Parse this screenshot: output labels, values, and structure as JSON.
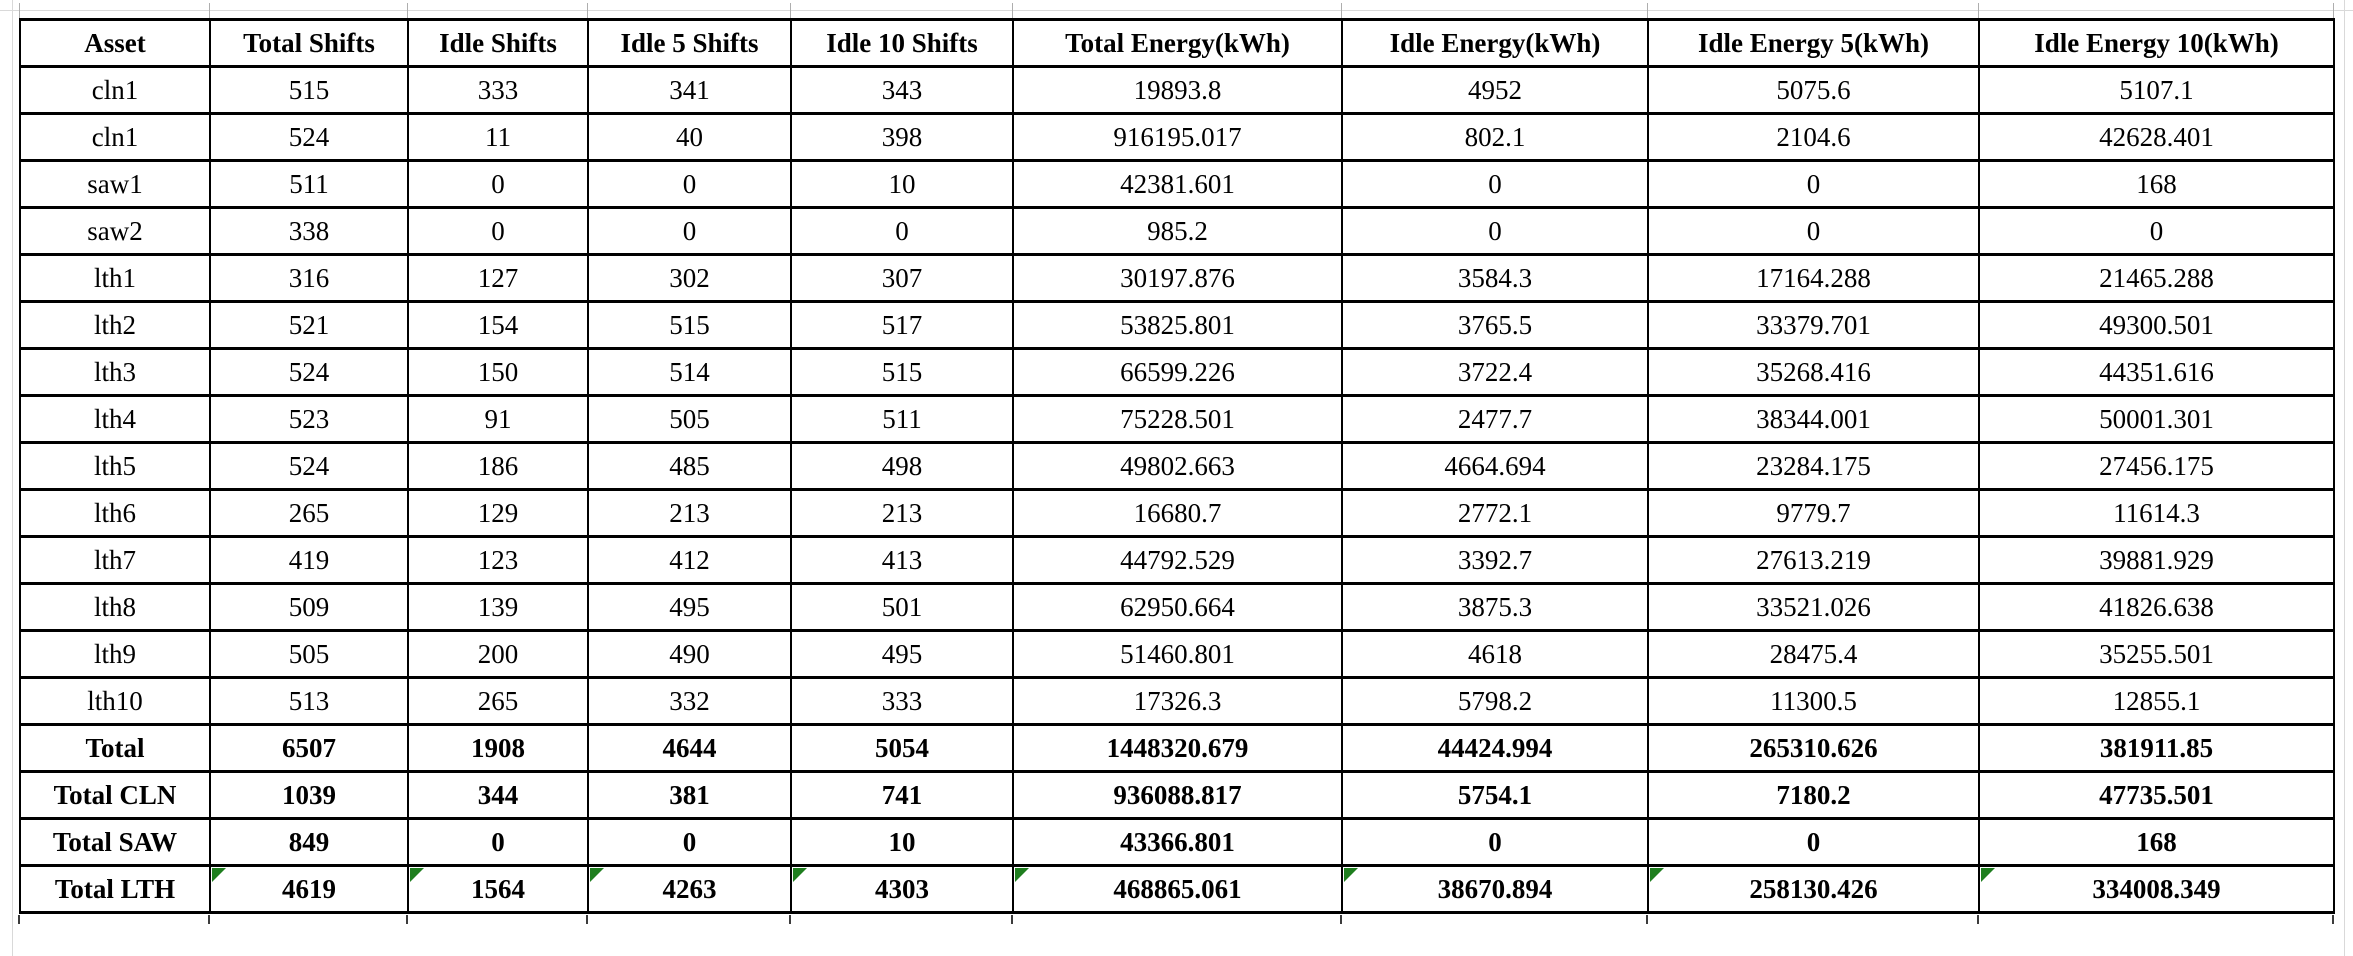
{
  "table": {
    "name": "asset-shift-energy-table",
    "columns": [
      "Asset",
      "Total Shifts",
      "Idle Shifts",
      "Idle 5 Shifts",
      "Idle 10 Shifts",
      "Total Energy(kWh)",
      "Idle Energy(kWh)",
      "Idle Energy 5(kWh)",
      "Idle Energy 10(kWh)"
    ],
    "rows": [
      {
        "asset": "cln1",
        "values": [
          "515",
          "333",
          "341",
          "343",
          "19893.8",
          "4952",
          "5075.6",
          "5107.1"
        ],
        "bold": false,
        "flagged": false
      },
      {
        "asset": "cln1",
        "values": [
          "524",
          "11",
          "40",
          "398",
          "916195.017",
          "802.1",
          "2104.6",
          "42628.401"
        ],
        "bold": false,
        "flagged": false
      },
      {
        "asset": "saw1",
        "values": [
          "511",
          "0",
          "0",
          "10",
          "42381.601",
          "0",
          "0",
          "168"
        ],
        "bold": false,
        "flagged": false
      },
      {
        "asset": "saw2",
        "values": [
          "338",
          "0",
          "0",
          "0",
          "985.2",
          "0",
          "0",
          "0"
        ],
        "bold": false,
        "flagged": false
      },
      {
        "asset": "lth1",
        "values": [
          "316",
          "127",
          "302",
          "307",
          "30197.876",
          "3584.3",
          "17164.288",
          "21465.288"
        ],
        "bold": false,
        "flagged": false
      },
      {
        "asset": "lth2",
        "values": [
          "521",
          "154",
          "515",
          "517",
          "53825.801",
          "3765.5",
          "33379.701",
          "49300.501"
        ],
        "bold": false,
        "flagged": false
      },
      {
        "asset": "lth3",
        "values": [
          "524",
          "150",
          "514",
          "515",
          "66599.226",
          "3722.4",
          "35268.416",
          "44351.616"
        ],
        "bold": false,
        "flagged": false
      },
      {
        "asset": "lth4",
        "values": [
          "523",
          "91",
          "505",
          "511",
          "75228.501",
          "2477.7",
          "38344.001",
          "50001.301"
        ],
        "bold": false,
        "flagged": false
      },
      {
        "asset": "lth5",
        "values": [
          "524",
          "186",
          "485",
          "498",
          "49802.663",
          "4664.694",
          "23284.175",
          "27456.175"
        ],
        "bold": false,
        "flagged": false
      },
      {
        "asset": "lth6",
        "values": [
          "265",
          "129",
          "213",
          "213",
          "16680.7",
          "2772.1",
          "9779.7",
          "11614.3"
        ],
        "bold": false,
        "flagged": false
      },
      {
        "asset": "lth7",
        "values": [
          "419",
          "123",
          "412",
          "413",
          "44792.529",
          "3392.7",
          "27613.219",
          "39881.929"
        ],
        "bold": false,
        "flagged": false
      },
      {
        "asset": "lth8",
        "values": [
          "509",
          "139",
          "495",
          "501",
          "62950.664",
          "3875.3",
          "33521.026",
          "41826.638"
        ],
        "bold": false,
        "flagged": false
      },
      {
        "asset": "lth9",
        "values": [
          "505",
          "200",
          "490",
          "495",
          "51460.801",
          "4618",
          "28475.4",
          "35255.501"
        ],
        "bold": false,
        "flagged": false
      },
      {
        "asset": "lth10",
        "values": [
          "513",
          "265",
          "332",
          "333",
          "17326.3",
          "5798.2",
          "11300.5",
          "12855.1"
        ],
        "bold": false,
        "flagged": false
      },
      {
        "asset": "Total",
        "values": [
          "6507",
          "1908",
          "4644",
          "5054",
          "1448320.679",
          "44424.994",
          "265310.626",
          "381911.85"
        ],
        "bold": true,
        "flagged": false
      },
      {
        "asset": "Total CLN",
        "values": [
          "1039",
          "344",
          "381",
          "741",
          "936088.817",
          "5754.1",
          "7180.2",
          "47735.501"
        ],
        "bold": true,
        "flagged": false
      },
      {
        "asset": "Total SAW",
        "values": [
          "849",
          "0",
          "0",
          "10",
          "43366.801",
          "0",
          "0",
          "168"
        ],
        "bold": true,
        "flagged": false
      },
      {
        "asset": "Total LTH",
        "values": [
          "4619",
          "1564",
          "4263",
          "4303",
          "468865.061",
          "38670.894",
          "258130.426",
          "334008.349"
        ],
        "bold": true,
        "flagged": true
      }
    ],
    "colors": {
      "border": "#000000",
      "error_flag_green": "#1e7e1e",
      "gridline_gray": "#d9d9d9"
    }
  }
}
